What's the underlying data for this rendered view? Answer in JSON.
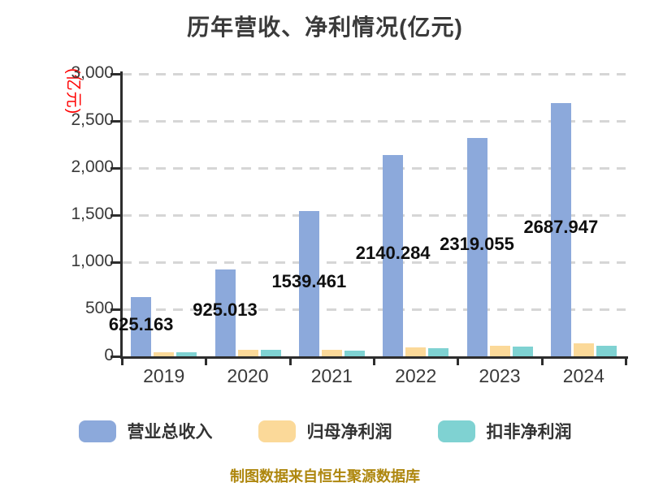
{
  "footer": {
    "text": "制图数据来自恒生聚源数据库"
  },
  "chart_data": {
    "type": "bar",
    "title": "历年营收、净利情况(亿元)",
    "ylabel": "(亿元)",
    "xlabel": "",
    "categories": [
      "2019",
      "2020",
      "2021",
      "2022",
      "2023",
      "2024"
    ],
    "series": [
      {
        "name": "营业总收入",
        "key": "total-revenue",
        "color": "#8CA9DB",
        "values": [
          625.163,
          925.013,
          1539.461,
          2140.284,
          2319.055,
          2687.947
        ],
        "labels": [
          "625.163",
          "925.013",
          "1539.461",
          "2140.284",
          "2319.055",
          "2687.947"
        ]
      },
      {
        "name": "归母净利润",
        "key": "net-profit-attributable",
        "color": "#FBD999",
        "values": [
          47,
          72,
          71,
          92,
          110,
          134
        ]
      },
      {
        "name": "扣非净利润",
        "key": "net-profit-deducted",
        "color": "#7FD2D2",
        "values": [
          41,
          67,
          60,
          87,
          100,
          116
        ]
      }
    ],
    "ylim": [
      0,
      3000
    ],
    "yticks": [
      0,
      500,
      1000,
      1500,
      2000,
      2500,
      3000
    ],
    "ytick_labels": [
      "0",
      "500",
      "1,000",
      "1,500",
      "2,000",
      "2,500",
      "3,000"
    ],
    "grid": "horizontal-dashed",
    "legend_position": "bottom",
    "colors": {
      "background": "#FFFFFF",
      "axis": "#2D2D2D",
      "grid": "#D6D6D6",
      "tick_label": "#3A3A3A",
      "data_label": "#0F0F0F",
      "title": "#3A3A3A",
      "ylabel": "#FF0000",
      "legend_label": "#333333",
      "footer": "#AE870E"
    }
  }
}
